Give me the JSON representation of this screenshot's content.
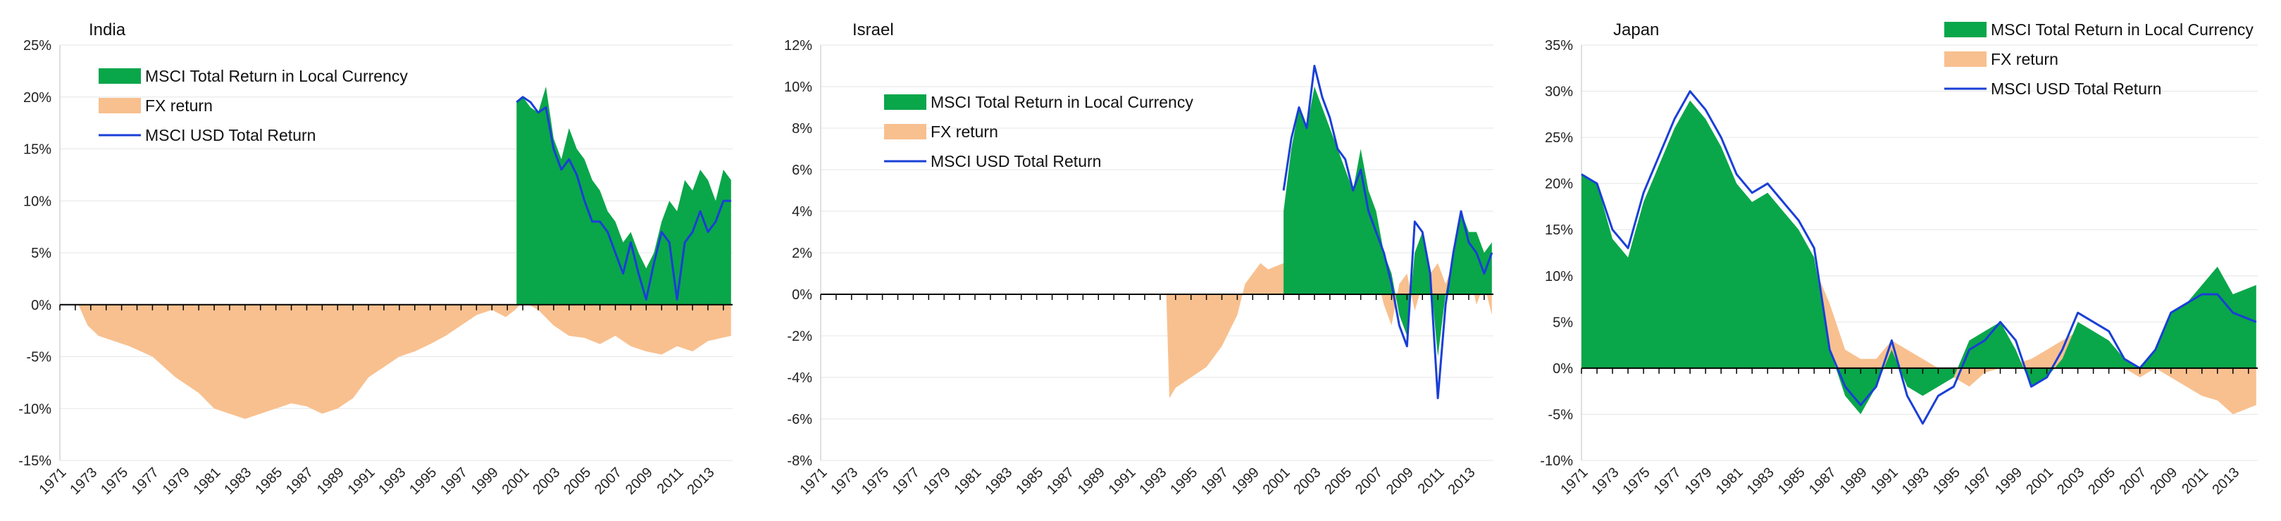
{
  "colors": {
    "local": "#0aa64a",
    "fx": "#f8c08f",
    "usd": "#1a3fd6",
    "axis": "#000000",
    "grid": "#e6e6e6"
  },
  "legend": {
    "local": "MSCI Total Return in Local Currency",
    "fx": "FX return",
    "usd": "MSCI USD Total Return"
  },
  "chart_data": [
    {
      "type": "area",
      "title": "India",
      "ylim": [
        -15,
        25
      ],
      "yticks": [
        -15,
        -10,
        -5,
        0,
        5,
        10,
        15,
        20,
        25
      ],
      "ytick_labels": [
        "-15%",
        "-10%",
        "-5%",
        "0%",
        "5%",
        "10%",
        "15%",
        "20%",
        "25%"
      ],
      "xlim": [
        1971,
        2014.6
      ],
      "xticks": [
        "1971",
        "1973",
        "1975",
        "1977",
        "1979",
        "1981",
        "1983",
        "1985",
        "1987",
        "1989",
        "1991",
        "1993",
        "1995",
        "1997",
        "1999",
        "2001",
        "2003",
        "2005",
        "2007",
        "2009",
        "2011",
        "2013"
      ],
      "series": [
        {
          "name": "FX return",
          "x": [
            1972.2,
            1972.8,
            1973.5,
            1974.5,
            1975.5,
            1977,
            1978.5,
            1980,
            1981,
            1982,
            1983,
            1984,
            1985,
            1986,
            1987,
            1988,
            1989,
            1990,
            1991,
            1992,
            1993,
            1994,
            1995,
            1996,
            1997,
            1998,
            1999,
            1999.9,
            2000.5,
            2001,
            2002,
            2003,
            2004,
            2005,
            2006,
            2007,
            2008,
            2009,
            2010,
            2011,
            2012,
            2013,
            2014.5
          ],
          "values": [
            0,
            -2,
            -3,
            -3.5,
            -4,
            -5,
            -7,
            -8.5,
            -10,
            -10.5,
            -11,
            -10.5,
            -10,
            -9.5,
            -9.8,
            -10.5,
            -10,
            -9,
            -7,
            -6,
            -5,
            -4.5,
            -3.8,
            -3,
            -2,
            -1,
            -0.5,
            -1.2,
            -0.5,
            0.3,
            -0.5,
            -2,
            -3,
            -3.2,
            -3.8,
            -3,
            -4,
            -4.5,
            -4.8,
            -4,
            -4.5,
            -3.5,
            -3
          ]
        },
        {
          "name": "MSCI Total Return in Local Currency",
          "x": [
            2000.6,
            2001,
            2001.5,
            2002,
            2002.5,
            2003,
            2003.5,
            2004,
            2004.5,
            2005,
            2005.5,
            2006,
            2006.5,
            2007,
            2007.5,
            2008,
            2008.5,
            2009,
            2009.5,
            2010,
            2010.5,
            2011,
            2011.5,
            2012,
            2012.5,
            2013,
            2013.5,
            2014,
            2014.5
          ],
          "values": [
            19.5,
            20,
            19,
            18.5,
            21,
            16,
            14,
            17,
            15,
            14,
            12,
            11,
            9,
            8,
            6,
            7,
            5,
            3.5,
            5,
            8,
            10,
            9,
            12,
            11,
            13,
            12,
            10,
            13,
            12
          ]
        },
        {
          "name": "MSCI USD Total Return",
          "x": [
            2000.6,
            2001,
            2001.5,
            2002,
            2002.5,
            2003,
            2003.5,
            2004,
            2004.5,
            2005,
            2005.5,
            2006,
            2006.5,
            2007,
            2007.5,
            2008,
            2008.5,
            2009,
            2009.5,
            2010,
            2010.5,
            2011,
            2011.5,
            2012,
            2012.5,
            2013,
            2013.5,
            2014,
            2014.5
          ],
          "values": [
            19.5,
            20,
            19.5,
            18.5,
            19,
            15,
            13,
            14,
            12.5,
            10,
            8,
            8,
            7,
            5,
            3,
            6,
            3,
            0.5,
            4,
            7,
            6,
            0.5,
            6,
            7,
            9,
            7,
            8,
            10,
            10
          ]
        }
      ]
    },
    {
      "type": "area",
      "title": "Israel",
      "ylim": [
        -8,
        12
      ],
      "yticks": [
        -8,
        -6,
        -4,
        -2,
        0,
        2,
        4,
        6,
        8,
        10,
        12
      ],
      "ytick_labels": [
        "-8%",
        "-6%",
        "-4%",
        "-2%",
        "0%",
        "2%",
        "4%",
        "6%",
        "8%",
        "10%",
        "12%"
      ],
      "xlim": [
        1971,
        2014.6
      ],
      "xticks": [
        "1971",
        "1973",
        "1975",
        "1977",
        "1979",
        "1981",
        "1983",
        "1985",
        "1987",
        "1989",
        "1991",
        "1993",
        "1995",
        "1997",
        "1999",
        "2001",
        "2003",
        "2005",
        "2007",
        "2009",
        "2011",
        "2013"
      ],
      "series": [
        {
          "name": "FX return",
          "x": [
            1993.4,
            1993.6,
            1994,
            1995,
            1996,
            1997,
            1998,
            1998.5,
            1999,
            1999.5,
            2000,
            2001,
            2002,
            2003,
            2004,
            2005,
            2006,
            2007,
            2007.5,
            2008,
            2008.5,
            2009,
            2009.5,
            2010,
            2010.5,
            2011,
            2011.5,
            2012,
            2012.5,
            2013,
            2013.5,
            2014,
            2014.5
          ],
          "values": [
            0,
            -5,
            -4.5,
            -4,
            -3.5,
            -2.5,
            -1,
            0.5,
            1,
            1.5,
            1.2,
            1.5,
            1,
            2,
            2.5,
            3,
            2,
            1,
            -0.5,
            -1.5,
            0.5,
            1,
            -0.8,
            0.5,
            1,
            1.5,
            0.5,
            1.5,
            1,
            1.2,
            -0.5,
            0.5,
            -1
          ]
        },
        {
          "name": "MSCI Total Return in Local Currency",
          "x": [
            2001,
            2001.5,
            2002,
            2002.5,
            2003,
            2003.5,
            2004,
            2004.5,
            2005,
            2005.5,
            2006,
            2006.5,
            2007,
            2007.5,
            2008,
            2008.5,
            2009,
            2009.5,
            2010,
            2010.5,
            2011,
            2011.5,
            2012,
            2012.5,
            2013,
            2013.5,
            2014,
            2014.5
          ],
          "values": [
            4,
            7,
            9,
            8,
            10,
            9,
            8,
            7,
            6,
            5,
            7,
            5,
            4,
            2,
            1,
            -1,
            -2,
            2,
            3,
            1,
            -3,
            0,
            2,
            4,
            3,
            3,
            2,
            2.5
          ]
        },
        {
          "name": "MSCI USD Total Return",
          "x": [
            2001,
            2001.5,
            2002,
            2002.5,
            2003,
            2003.5,
            2004,
            2004.5,
            2005,
            2005.5,
            2006,
            2006.5,
            2007,
            2007.5,
            2008,
            2008.5,
            2009,
            2009.5,
            2010,
            2010.5,
            2011,
            2011.5,
            2012,
            2012.5,
            2013,
            2013.5,
            2014,
            2014.5
          ],
          "values": [
            5,
            7.5,
            9,
            8,
            11,
            9.5,
            8.5,
            7,
            6.5,
            5,
            6,
            4,
            3,
            2,
            0.5,
            -1.5,
            -2.5,
            3.5,
            3,
            1,
            -5,
            -0.5,
            2,
            4,
            2.5,
            2,
            1,
            2
          ]
        }
      ]
    },
    {
      "type": "area",
      "title": "Japan",
      "ylim": [
        -10,
        35
      ],
      "yticks": [
        -10,
        -5,
        0,
        5,
        10,
        15,
        20,
        25,
        30,
        35
      ],
      "ytick_labels": [
        "-10%",
        "-5%",
        "0%",
        "5%",
        "10%",
        "15%",
        "20%",
        "25%",
        "30%",
        "35%"
      ],
      "xlim": [
        1971,
        2014.6
      ],
      "xticks": [
        "1971",
        "1973",
        "1975",
        "1977",
        "1979",
        "1981",
        "1983",
        "1985",
        "1987",
        "1989",
        "1991",
        "1993",
        "1995",
        "1997",
        "1999",
        "2001",
        "2003",
        "2005",
        "2007",
        "2009",
        "2011",
        "2013"
      ],
      "series": [
        {
          "name": "FX return",
          "x": [
            1971,
            1972,
            1973,
            1974,
            1975,
            1976,
            1977,
            1978,
            1979,
            1980,
            1981,
            1982,
            1983,
            1984,
            1985,
            1986,
            1987,
            1988,
            1989,
            1990,
            1991,
            1992,
            1993,
            1994,
            1995,
            1996,
            1997,
            1998,
            1999,
            2000,
            2001,
            2002,
            2003,
            2004,
            2005,
            2006,
            2007,
            2008,
            2009,
            2010,
            2011,
            2012,
            2013,
            2014.5
          ],
          "values": [
            5.5,
            5,
            3,
            2,
            3,
            4,
            5,
            6,
            7,
            6,
            5,
            5,
            4,
            6,
            8,
            11,
            7,
            2,
            1,
            1,
            3,
            2,
            1,
            0,
            -1,
            -2,
            -0.5,
            0,
            0.5,
            1,
            2,
            3,
            4,
            3,
            1,
            0,
            -1,
            0,
            -1,
            -2,
            -3,
            -3.5,
            -5,
            -4
          ]
        },
        {
          "name": "MSCI Total Return in Local Currency",
          "x": [
            1971,
            1972,
            1973,
            1974,
            1975,
            1976,
            1977,
            1978,
            1979,
            1980,
            1981,
            1982,
            1983,
            1984,
            1985,
            1986,
            1987,
            1988,
            1989,
            1990,
            1991,
            1992,
            1993,
            1994,
            1995,
            1996,
            1997,
            1998,
            1999,
            2000,
            2001,
            2002,
            2003,
            2004,
            2005,
            2006,
            2007,
            2008,
            2009,
            2010,
            2011,
            2012,
            2013,
            2014.5
          ],
          "values": [
            21,
            20,
            14,
            12,
            18,
            22,
            26,
            29,
            27,
            24,
            20,
            18,
            19,
            17,
            15,
            12,
            2,
            -3,
            -5,
            -2,
            2,
            -2,
            -3,
            -2,
            -1,
            3,
            4,
            5,
            2,
            -2,
            -1,
            1,
            5,
            4,
            3,
            1,
            0,
            2,
            6,
            7,
            9,
            11,
            8,
            9
          ]
        },
        {
          "name": "MSCI USD Total Return",
          "x": [
            1971,
            1972,
            1973,
            1974,
            1975,
            1976,
            1977,
            1978,
            1979,
            1980,
            1981,
            1982,
            1983,
            1984,
            1985,
            1986,
            1987,
            1988,
            1989,
            1990,
            1991,
            1992,
            1993,
            1994,
            1995,
            1996,
            1997,
            1998,
            1999,
            2000,
            2001,
            2002,
            2003,
            2004,
            2005,
            2006,
            2007,
            2008,
            2009,
            2010,
            2011,
            2012,
            2013,
            2014.5
          ],
          "values": [
            21,
            20,
            15,
            13,
            19,
            23,
            27,
            30,
            28,
            25,
            21,
            19,
            20,
            18,
            16,
            13,
            2,
            -2,
            -4,
            -2,
            3,
            -3,
            -6,
            -3,
            -2,
            2,
            3,
            5,
            3,
            -2,
            -1,
            2,
            6,
            5,
            4,
            1,
            0,
            2,
            6,
            7,
            8,
            8,
            6,
            5
          ]
        }
      ]
    }
  ]
}
